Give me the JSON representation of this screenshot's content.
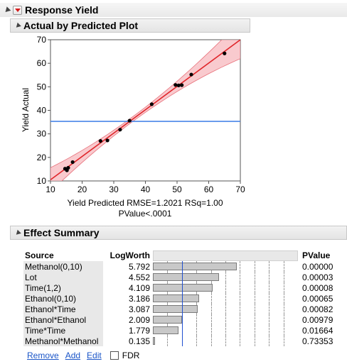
{
  "report": {
    "title": "Response Yield"
  },
  "plot_section": {
    "title": "Actual by Predicted Plot"
  },
  "effects_section": {
    "title": "Effect Summary"
  },
  "chart_data": {
    "type": "scatter",
    "title": "",
    "xlabel": "Yield Predicted RMSE=1.2021 RSq=1.00",
    "xlabel2": "PValue<.0001",
    "ylabel": "Yield Actual",
    "xlim": [
      10,
      70
    ],
    "ylim": [
      10,
      70
    ],
    "xticks": [
      10,
      20,
      30,
      40,
      50,
      60,
      70
    ],
    "yticks": [
      10,
      20,
      30,
      40,
      50,
      60,
      70
    ],
    "mean_line_y": 35.3,
    "fit_line": [
      [
        10,
        10.5
      ],
      [
        70,
        70
      ]
    ],
    "points": [
      [
        14.6,
        15.2
      ],
      [
        15.2,
        14.5
      ],
      [
        15.6,
        15.6
      ],
      [
        17.0,
        18.0
      ],
      [
        25.8,
        27.0
      ],
      [
        28.0,
        27.2
      ],
      [
        32.0,
        31.8
      ],
      [
        35.0,
        35.6
      ],
      [
        42.0,
        42.6
      ],
      [
        49.5,
        50.8
      ],
      [
        50.5,
        50.6
      ],
      [
        51.5,
        50.7
      ],
      [
        54.5,
        55.2
      ],
      [
        65.0,
        64.2
      ]
    ],
    "colors": {
      "points": "#000000",
      "fit": "#e0262b",
      "band": "#f7b8be",
      "mean": "#4a86e8"
    }
  },
  "effects": {
    "headers": {
      "source": "Source",
      "logworth": "LogWorth",
      "pvalue": "PValue"
    },
    "scale_max": 10,
    "rows": [
      {
        "source": "Methanol(0,10)",
        "logworth": "5.792",
        "value": 5.792,
        "pvalue": "0.00000"
      },
      {
        "source": "Lot",
        "logworth": "4.552",
        "value": 4.552,
        "pvalue": "0.00003"
      },
      {
        "source": "Time(1,2)",
        "logworth": "4.109",
        "value": 4.109,
        "pvalue": "0.00008"
      },
      {
        "source": "Ethanol(0,10)",
        "logworth": "3.186",
        "value": 3.186,
        "pvalue": "0.00065"
      },
      {
        "source": "Ethanol*Time",
        "logworth": "3.087",
        "value": 3.087,
        "pvalue": "0.00082"
      },
      {
        "source": "Ethanol*Ethanol",
        "logworth": "2.009",
        "value": 2.009,
        "pvalue": "0.00979"
      },
      {
        "source": "Time*Time",
        "logworth": "1.779",
        "value": 1.779,
        "pvalue": "0.01664"
      },
      {
        "source": "Methanol*Methanol",
        "logworth": "0.135",
        "value": 0.135,
        "pvalue": "0.73353"
      }
    ],
    "reference_line_value": 2
  },
  "actions": {
    "remove": "Remove",
    "add": "Add",
    "edit": "Edit",
    "fdr": "FDR"
  }
}
